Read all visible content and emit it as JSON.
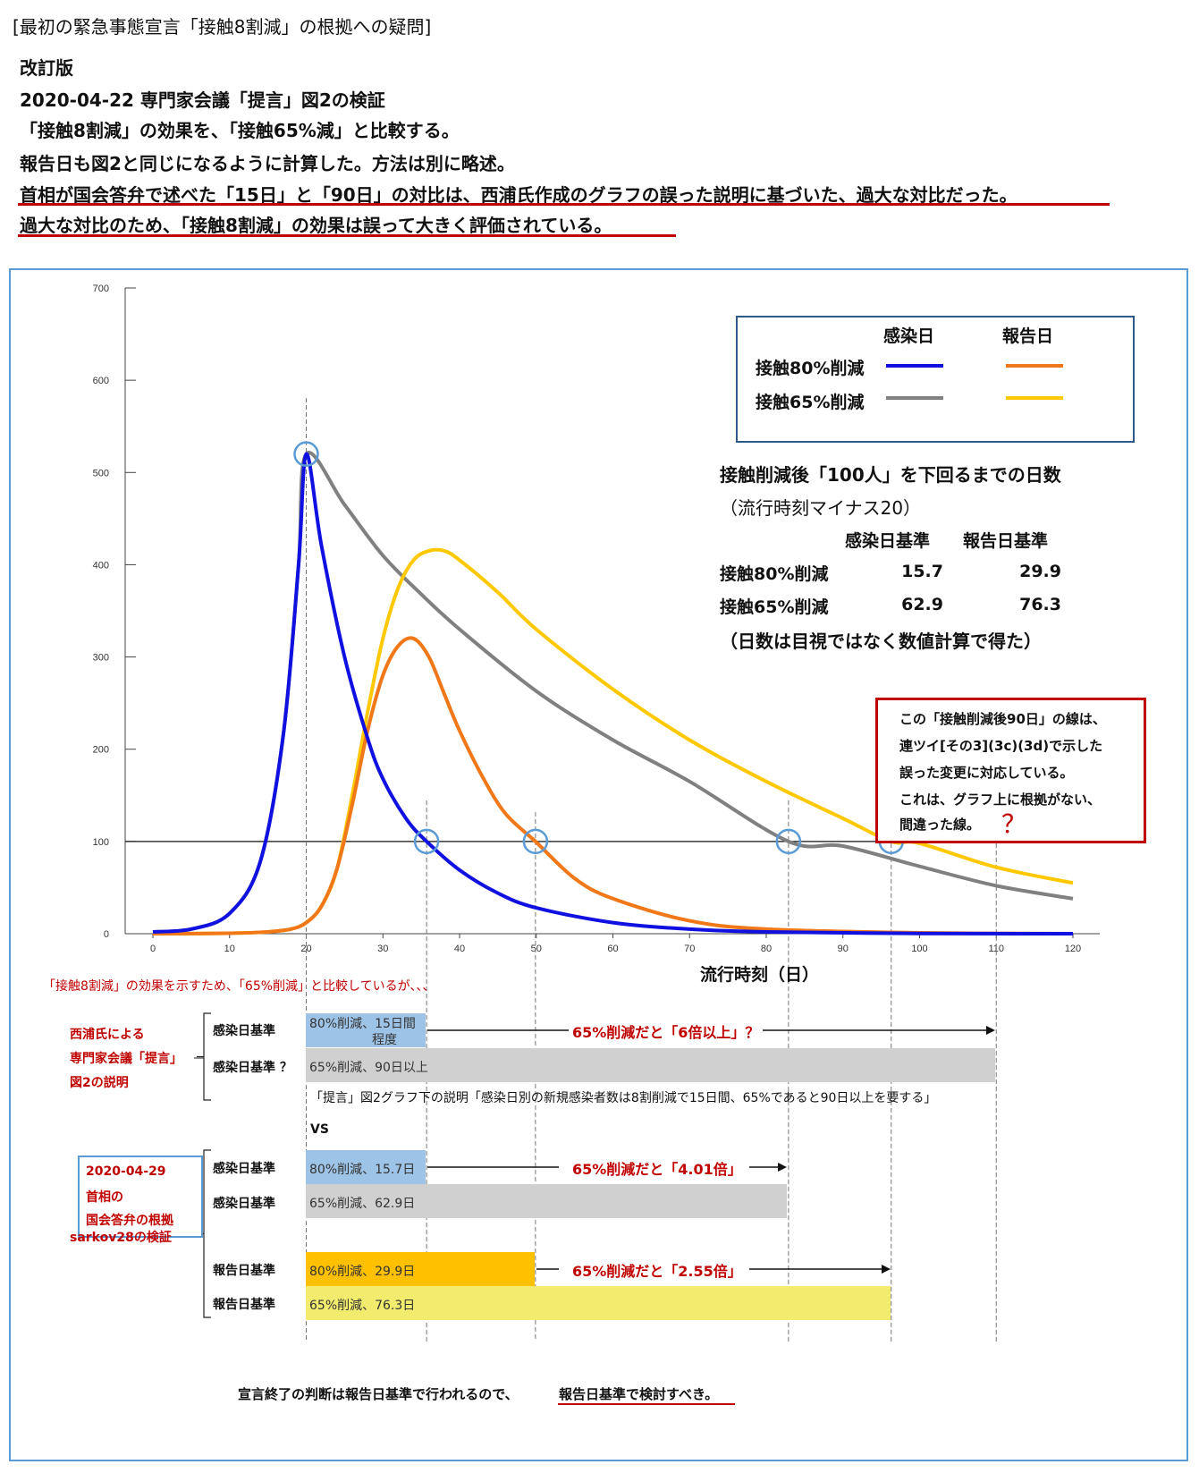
{
  "header": {
    "title": "[最初の緊急事態宣言「接触8割減」の根拠への疑問]",
    "lines": [
      "改訂版",
      "2020-04-22 専門家会議「提言」図2の検証",
      "「接触8割減」の効果を、「接触65%減」と比較する。",
      "報告日も図2と同じになるように計算した。方法は別に略述。",
      "首相が国会答弁で述べた「15日」と「90日」の対比は、西浦氏作成のグラフの誤った説明に基づいた、過大な対比だった。",
      "過大な対比のため、「接触8割減」の効果は誤って大きく評価されている。"
    ]
  },
  "chart_data": {
    "type": "line",
    "xlabel": "流行時刻（日）",
    "ylabel": "",
    "xlim": [
      0,
      120
    ],
    "ylim": [
      0,
      700
    ],
    "xticks": [
      0,
      10,
      20,
      30,
      40,
      50,
      60,
      70,
      80,
      90,
      100,
      110,
      120
    ],
    "yticks": [
      0,
      100,
      200,
      300,
      400,
      500,
      600,
      700
    ],
    "reference_line_y": 100,
    "vertical_marks_x": [
      20,
      35.7,
      49.9,
      82.9,
      96.3,
      110
    ],
    "circles": [
      [
        20,
        520
      ],
      [
        35.7,
        100
      ],
      [
        49.9,
        100
      ],
      [
        82.9,
        100
      ],
      [
        96.3,
        100
      ]
    ],
    "series": [
      {
        "name": "接触80%削減 感染日",
        "color": "#1010e0",
        "x": [
          0,
          5,
          10,
          14,
          17,
          19,
          20,
          22,
          25,
          28,
          30,
          33,
          35.7,
          40,
          45,
          50,
          60,
          70,
          80,
          100,
          120
        ],
        "y": [
          2,
          5,
          22,
          78,
          215,
          400,
          520,
          420,
          300,
          212,
          168,
          125,
          100,
          69,
          44,
          28,
          12,
          5,
          2,
          0.3,
          0
        ]
      },
      {
        "name": "接触80%削減 報告日",
        "color": "#f07818",
        "x": [
          0,
          10,
          15,
          18,
          20,
          22,
          24,
          26,
          28,
          30,
          32,
          34,
          36,
          38,
          40,
          43,
          46,
          49.9,
          55,
          60,
          70,
          80,
          100,
          120
        ],
        "y": [
          0,
          0.5,
          2,
          5,
          12,
          30,
          70,
          140,
          220,
          280,
          312,
          320,
          300,
          260,
          220,
          170,
          130,
          100,
          60,
          38,
          14,
          5,
          1,
          0
        ]
      },
      {
        "name": "接触65%削減 感染日",
        "color": "#808080",
        "x": [
          0,
          5,
          10,
          14,
          17,
          19,
          20,
          25,
          30,
          35,
          40,
          50,
          60,
          70,
          82.9,
          90,
          100,
          110,
          120
        ],
        "y": [
          2,
          5,
          22,
          78,
          215,
          400,
          520,
          465,
          410,
          368,
          330,
          263,
          210,
          165,
          100,
          95,
          73,
          52,
          38
        ]
      },
      {
        "name": "接触65%削減 報告日",
        "color": "#ffc800",
        "x": [
          0,
          10,
          15,
          18,
          20,
          22,
          24,
          26,
          28,
          30,
          32,
          34,
          36,
          38,
          40,
          45,
          50,
          60,
          70,
          80,
          90,
          96.3,
          100,
          110,
          120
        ],
        "y": [
          0,
          0.5,
          2,
          5,
          12,
          30,
          70,
          150,
          240,
          320,
          375,
          405,
          415,
          415,
          405,
          370,
          330,
          265,
          210,
          165,
          125,
          100,
          98,
          72,
          55
        ]
      }
    ]
  },
  "legend": {
    "col_infection": "感染日",
    "col_report": "報告日",
    "row_80": "接触80%削減",
    "row_65": "接触65%削減",
    "color_80_infection": "#1010e0",
    "color_80_report": "#f07818",
    "color_65_infection": "#808080",
    "color_65_report": "#ffc800"
  },
  "stats": {
    "title": "接触削減後「100人」を下回るまでの日数",
    "subtitle": "（流行時刻マイナス20）",
    "col_infection": "感染日基準",
    "col_report": "報告日基準",
    "row_80": "接触80%削減",
    "row_65": "接触65%削減",
    "v80_inf": "15.7",
    "v80_rep": "29.9",
    "v65_inf": "62.9",
    "v65_rep": "76.3",
    "footnote": "（日数は目視ではなく数値計算で得た）"
  },
  "note": {
    "lines": [
      "この「接触削減後90日」の線は、",
      "連ツイ[その3](3c)(3d)で示した",
      "誤った変更に対応している。",
      "これは、グラフ上に根拠がない、",
      "間違った線。"
    ],
    "question": "？"
  },
  "comparison": {
    "intro": "「接触8割減」の効果を示すため、「65%削減」と比較しているが、、、",
    "left_group1": [
      "西浦氏による",
      "専門家会議「提言」",
      "図2の説明"
    ],
    "left_box": [
      "2020-04-29",
      "首相の",
      "国会答弁の根拠"
    ],
    "left_group2": "sarkov28の検証",
    "rows": {
      "r1_label": "感染日基準",
      "r1_bar": "80%削減、15日間",
      "r1_bar2": "程度",
      "r1_arrow": "65%削減だと「6倍以上」？",
      "r2_label": "感染日基準 ？",
      "r2_bar": "65%削減、90日以上",
      "caption": "「提言」図2グラフ下の説明「感染日別の新規感染者数は8割削減で15日間、65%であると90日以上を要する」",
      "vs": "VS",
      "r3_label": "感染日基準",
      "r3_bar": "80%削減、15.7日",
      "r3_arrow": "65%削減だと「4.01倍」",
      "r4_label": "感染日基準",
      "r4_bar": "65%削減、62.9日",
      "r5_label": "報告日基準",
      "r5_bar": "80%削減、29.9日",
      "r5_arrow": "65%削減だと「2.55倍」",
      "r6_label": "報告日基準",
      "r6_bar": "65%削減、76.3日"
    },
    "footer_a": "宣言終了の判断は報告日基準で行われるので、",
    "footer_b": "報告日基準で検討すべき。"
  }
}
